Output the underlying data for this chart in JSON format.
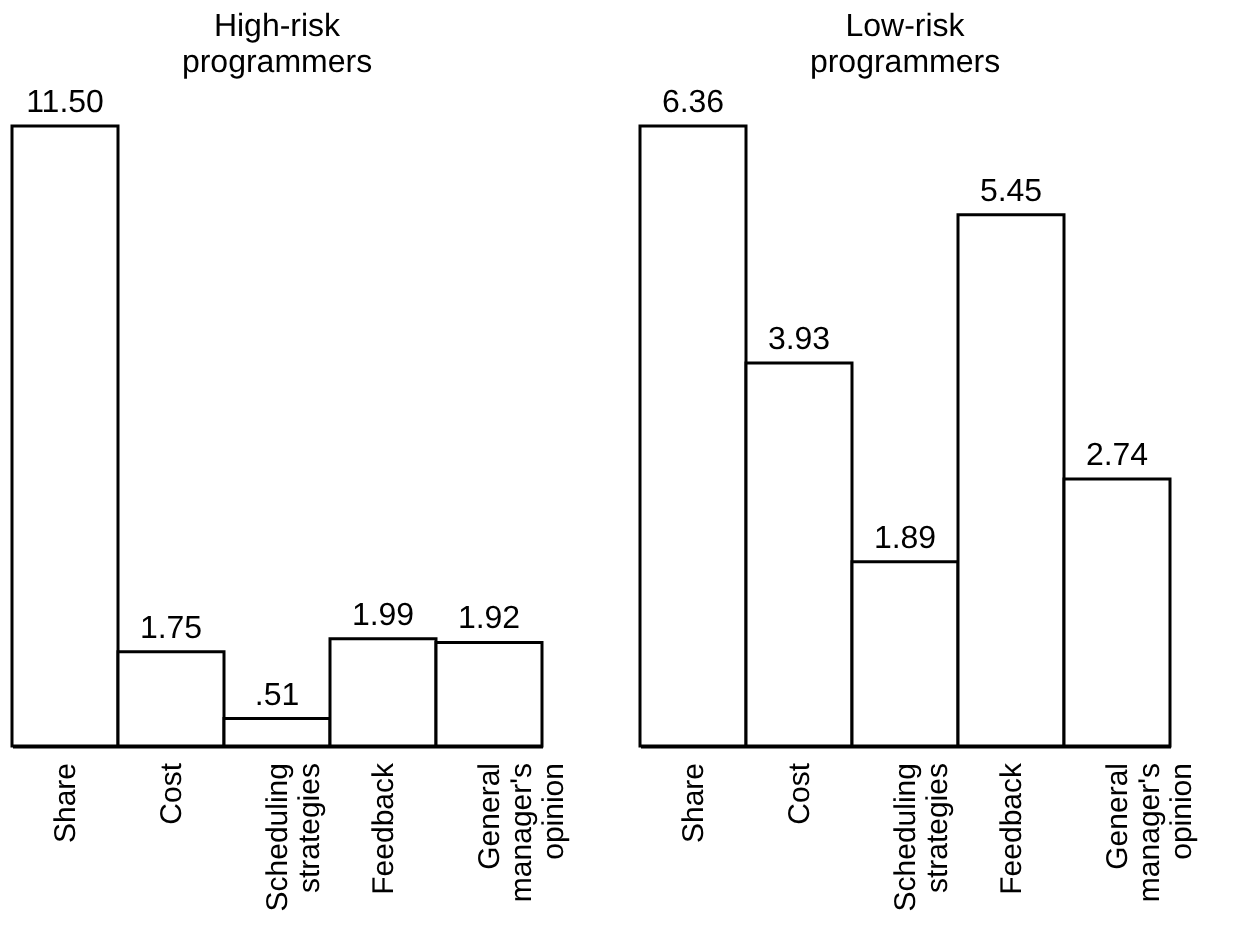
{
  "chart_data": [
    {
      "type": "bar",
      "title": "High-risk\nprogrammers",
      "categories": [
        "Share",
        "Cost",
        "Scheduling\nstrategies",
        "Feedback",
        "General\nmanager's\nopinion"
      ],
      "values": [
        11.5,
        1.75,
        0.51,
        1.99,
        1.92
      ],
      "value_labels": [
        "11.50",
        "1.75",
        ".51",
        "1.99",
        "1.92"
      ],
      "color": "#ffffff",
      "tick_labels": "x"
    },
    {
      "type": "bar",
      "title": "Low-risk\nprogrammers",
      "categories": [
        "Share",
        "Cost",
        "Scheduling\nstrategies",
        "Feedback",
        "General\nmanager's\nopinion"
      ],
      "values": [
        6.36,
        3.93,
        1.89,
        5.45,
        2.74
      ],
      "value_labels": [
        "6.36",
        "3.93",
        "1.89",
        "5.45",
        "2.74"
      ],
      "color": "#ffffff",
      "tick_labels": "x"
    }
  ]
}
